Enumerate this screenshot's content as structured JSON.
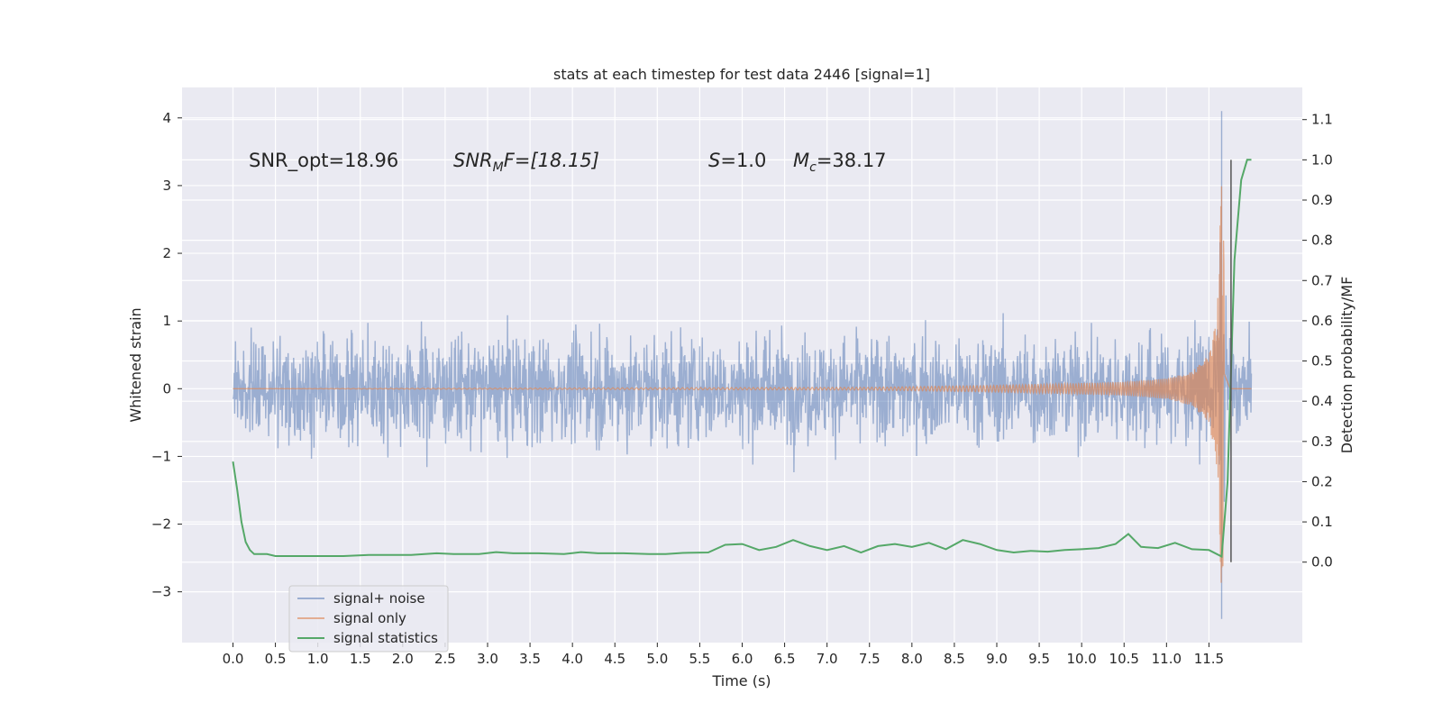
{
  "chart_data": {
    "type": "line",
    "title": "stats at each timestep for test data 2446 [signal=1]",
    "xlabel": "Time (s)",
    "ylabel_left": "Whitened strain",
    "ylabel_right": "Detection probability/MF",
    "xlim": [
      -0.6,
      12.6
    ],
    "ylim_left": [
      -3.75,
      4.45
    ],
    "ylim_right": [
      -0.2,
      1.18
    ],
    "x_ticks": [
      "0.0",
      "0.5",
      "1.0",
      "1.5",
      "2.0",
      "2.5",
      "3.0",
      "3.5",
      "4.0",
      "4.5",
      "5.0",
      "5.5",
      "6.0",
      "6.5",
      "7.0",
      "7.5",
      "8.0",
      "8.5",
      "9.0",
      "9.5",
      "10.0",
      "10.5",
      "11.0",
      "11.5"
    ],
    "y_ticks_left": [
      "4",
      "3",
      "2",
      "1",
      "0",
      "−1",
      "−2",
      "−3"
    ],
    "y_ticks_right": [
      "1.1",
      "1.0",
      "0.9",
      "0.8",
      "0.7",
      "0.6",
      "0.5",
      "0.4",
      "0.3",
      "0.2",
      "0.1",
      "0.0"
    ],
    "annotations": {
      "snr_opt": "SNR_opt=18.96",
      "snr_mf_main": "SNR",
      "snr_mf_sub": "M",
      "snr_mf_rest": "F=[18.15]",
      "s_main": "S",
      "s_rest": "=1.0",
      "mc_main": "M",
      "mc_sub": "c",
      "mc_rest": "=38.17"
    },
    "series": [
      {
        "name": "signal+ noise",
        "color": "#4c72b0",
        "x_range": [
          0.0,
          12.0
        ],
        "envelope_peak": 4.1,
        "envelope_trough": -3.4,
        "typical_amplitude": 1.3
      },
      {
        "name": "signal only",
        "color": "#dd8452",
        "x": [
          0.0,
          7.5,
          9.0,
          10.0,
          10.5,
          11.0,
          11.3,
          11.5,
          11.6,
          11.65,
          11.7,
          11.75,
          12.0
        ],
        "amplitude": [
          0.0,
          0.02,
          0.05,
          0.08,
          0.1,
          0.15,
          0.25,
          0.5,
          1.2,
          3.1,
          1.5,
          0.0,
          0.0
        ]
      },
      {
        "name": "signal statistics",
        "color": "#55a868",
        "x": [
          0.0,
          0.05,
          0.1,
          0.15,
          0.2,
          0.25,
          0.3,
          0.4,
          0.5,
          0.6,
          0.8,
          1.0,
          1.3,
          1.6,
          1.9,
          2.1,
          2.4,
          2.6,
          2.9,
          3.1,
          3.3,
          3.6,
          3.9,
          4.1,
          4.3,
          4.6,
          4.9,
          5.1,
          5.3,
          5.6,
          5.8,
          6.0,
          6.2,
          6.4,
          6.6,
          6.8,
          7.0,
          7.2,
          7.4,
          7.6,
          7.8,
          8.0,
          8.2,
          8.4,
          8.6,
          8.8,
          9.0,
          9.2,
          9.4,
          9.6,
          9.8,
          10.0,
          10.2,
          10.4,
          10.55,
          10.7,
          10.9,
          11.1,
          11.3,
          11.5,
          11.65,
          11.72,
          11.8,
          11.88,
          11.95,
          12.0
        ],
        "values": [
          0.25,
          0.18,
          0.1,
          0.05,
          0.03,
          0.02,
          0.02,
          0.02,
          0.015,
          0.015,
          0.015,
          0.015,
          0.015,
          0.018,
          0.018,
          0.018,
          0.022,
          0.02,
          0.02,
          0.025,
          0.022,
          0.022,
          0.02,
          0.025,
          0.022,
          0.022,
          0.02,
          0.02,
          0.023,
          0.024,
          0.043,
          0.045,
          0.03,
          0.038,
          0.055,
          0.04,
          0.03,
          0.04,
          0.024,
          0.04,
          0.045,
          0.038,
          0.048,
          0.032,
          0.055,
          0.045,
          0.03,
          0.024,
          0.028,
          0.026,
          0.03,
          0.032,
          0.035,
          0.045,
          0.07,
          0.038,
          0.035,
          0.048,
          0.032,
          0.03,
          0.014,
          0.2,
          0.75,
          0.95,
          1.0,
          1.0
        ]
      }
    ],
    "legend": {
      "position": "bottom-left",
      "entries": [
        "signal+ noise",
        "signal only",
        "signal statistics"
      ]
    },
    "background": "#eaeaf2",
    "grid": true
  }
}
